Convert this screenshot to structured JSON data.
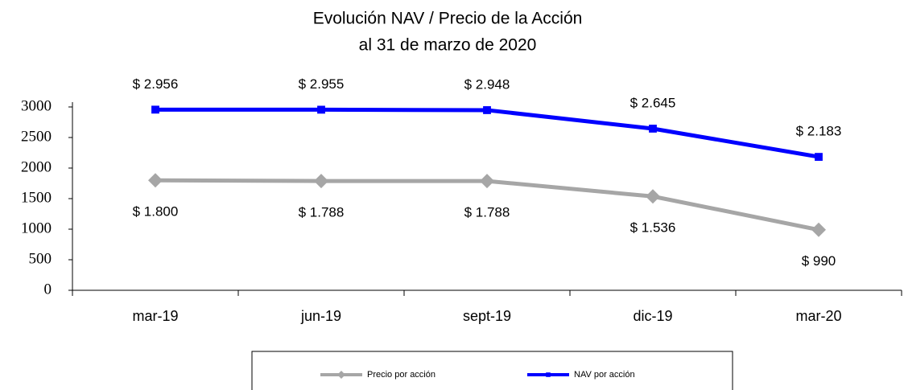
{
  "chart_data": {
    "type": "line",
    "title": "Evolución NAV / Precio de la Acción",
    "subtitle": "al 31 de marzo de 2020",
    "categories": [
      "mar-19",
      "jun-19",
      "sept-19",
      "dic-19",
      "mar-20"
    ],
    "series": [
      {
        "name": "Precio por acción",
        "color": "#a6a6a6",
        "marker": "diamond",
        "values": [
          1800,
          1788,
          1788,
          1536,
          990
        ],
        "value_labels": [
          "$ 1.800",
          "$ 1.788",
          "$ 1.788",
          "$ 1.536",
          "$ 990"
        ]
      },
      {
        "name": "NAV por acción",
        "color": "#0000ff",
        "marker": "square",
        "values": [
          2956,
          2955,
          2948,
          2645,
          2183
        ],
        "value_labels": [
          "$ 2.956",
          "$ 2.955",
          "$ 2.948",
          "$ 2.645",
          "$ 2.183"
        ]
      }
    ],
    "ylim": [
      0,
      3000
    ],
    "yticks": [
      0,
      500,
      1000,
      1500,
      2000,
      2500,
      3000
    ],
    "grid": false,
    "legend": "bottom"
  }
}
